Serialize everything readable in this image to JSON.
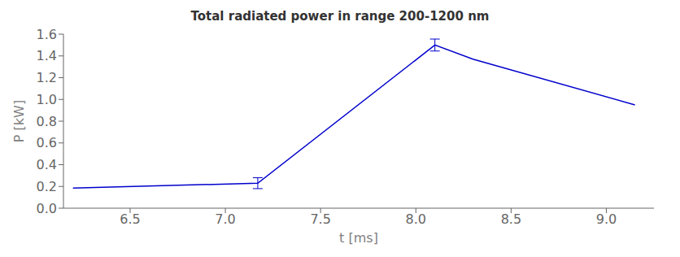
{
  "chart_data": {
    "type": "line",
    "title": "Total radiated power in range 200-1200 nm",
    "xlabel": "t [ms]",
    "ylabel": "P [kW]",
    "x": [
      6.2,
      7.17,
      8.1,
      8.3,
      9.15
    ],
    "values": [
      0.185,
      0.23,
      1.5,
      1.37,
      0.95
    ],
    "yerr": [
      null,
      0.05,
      0.055,
      null,
      null
    ],
    "color": "#0000cc",
    "xlim": [
      6.15,
      9.25
    ],
    "ylim": [
      0.0,
      1.6
    ],
    "xticks": [
      6.5,
      {
        "value": 7.0,
        "label": "7.0"
      },
      7.5,
      {
        "value": 8.0,
        "label": "8.0"
      },
      8.5,
      {
        "value": 9.0,
        "label": "9.0"
      }
    ],
    "yticks": [
      {
        "value": 0.0,
        "label": "0.0"
      },
      0.2,
      0.4,
      0.6,
      0.8,
      {
        "value": 1.0,
        "label": "1.0"
      },
      1.2,
      1.4,
      1.6
    ]
  }
}
